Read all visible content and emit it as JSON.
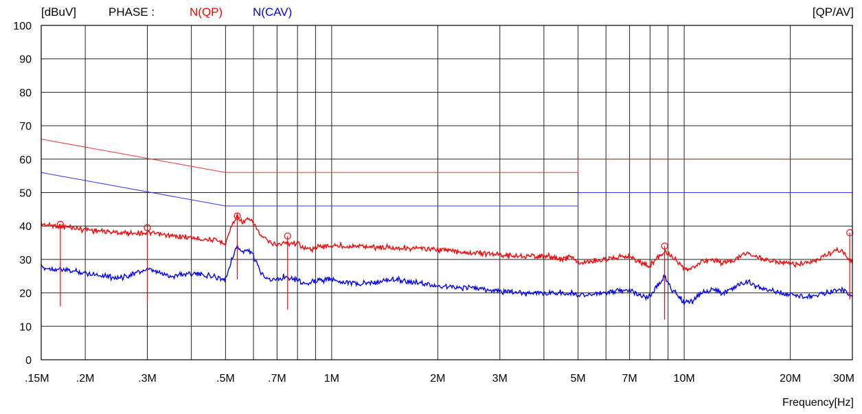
{
  "header": {
    "unit": "[dBuV]",
    "phase_label": "PHASE :",
    "mode": "[QP/AV]"
  },
  "colors": {
    "qp": "#ff0000",
    "cav": "#0000ff",
    "limit_qp": "#ee3333",
    "limit_av": "#3333ee",
    "grid": "#222222"
  },
  "chart_data": {
    "type": "line",
    "title": "",
    "xscale": "log",
    "xlim": [
      0.15,
      30
    ],
    "ylim": [
      0,
      100
    ],
    "xlabel": "Frequency[Hz]",
    "ylabel": "[dBuV]",
    "grid": true,
    "yticks": [
      0,
      10,
      20,
      30,
      40,
      50,
      60,
      70,
      80,
      90,
      100
    ],
    "xticks": [
      {
        "v": 0.15,
        "label": ".15M"
      },
      {
        "v": 0.2,
        "label": ".2M"
      },
      {
        "v": 0.3,
        "label": ".3M"
      },
      {
        "v": 0.5,
        "label": ".5M"
      },
      {
        "v": 0.7,
        "label": ".7M"
      },
      {
        "v": 1,
        "label": "1M"
      },
      {
        "v": 2,
        "label": "2M"
      },
      {
        "v": 3,
        "label": "3M"
      },
      {
        "v": 5,
        "label": "5M"
      },
      {
        "v": 7,
        "label": "7M"
      },
      {
        "v": 10,
        "label": "10M"
      },
      {
        "v": 20,
        "label": "20M"
      },
      {
        "v": 30,
        "label": "30M"
      }
    ],
    "minor_gridlines": [
      0.4,
      0.6,
      0.8,
      0.9,
      4,
      6,
      8,
      9
    ],
    "legend": [
      {
        "name": "N(QP)",
        "color": "#ff0000"
      },
      {
        "name": "N(CAV)",
        "color": "#0000ff"
      }
    ],
    "limit_lines": [
      {
        "color": "#ee3333",
        "points": [
          [
            0.15,
            66
          ],
          [
            0.5,
            56
          ],
          [
            5,
            56
          ],
          [
            5,
            60
          ],
          [
            30,
            60
          ]
        ]
      },
      {
        "color": "#3333ee",
        "points": [
          [
            0.15,
            56
          ],
          [
            0.5,
            46
          ],
          [
            5,
            46
          ],
          [
            5,
            50
          ],
          [
            30,
            50
          ]
        ]
      }
    ],
    "series": [
      {
        "name": "N(QP)",
        "color": "#ff0000",
        "values": [
          [
            0.15,
            40.5
          ],
          [
            0.17,
            40
          ],
          [
            0.2,
            39
          ],
          [
            0.25,
            38
          ],
          [
            0.3,
            38
          ],
          [
            0.35,
            37
          ],
          [
            0.4,
            36.5
          ],
          [
            0.45,
            36
          ],
          [
            0.5,
            35
          ],
          [
            0.52,
            40
          ],
          [
            0.54,
            43
          ],
          [
            0.56,
            41
          ],
          [
            0.58,
            42
          ],
          [
            0.6,
            41
          ],
          [
            0.63,
            37
          ],
          [
            0.67,
            35
          ],
          [
            0.7,
            34.5
          ],
          [
            0.75,
            35
          ],
          [
            0.8,
            35
          ],
          [
            0.85,
            33
          ],
          [
            0.9,
            33.5
          ],
          [
            0.95,
            34
          ],
          [
            1,
            34
          ],
          [
            1.2,
            34
          ],
          [
            1.5,
            33.5
          ],
          [
            2,
            33
          ],
          [
            2.5,
            32
          ],
          [
            3,
            31.5
          ],
          [
            3.5,
            31
          ],
          [
            4,
            31
          ],
          [
            4.5,
            30
          ],
          [
            4.8,
            31
          ],
          [
            5,
            29
          ],
          [
            5.5,
            29.5
          ],
          [
            6,
            30
          ],
          [
            6.5,
            31
          ],
          [
            7,
            31
          ],
          [
            7.5,
            29
          ],
          [
            8,
            28
          ],
          [
            8.5,
            31
          ],
          [
            8.8,
            32.5
          ],
          [
            9.2,
            31
          ],
          [
            9.6,
            29
          ],
          [
            10,
            27
          ],
          [
            10.5,
            27
          ],
          [
            11,
            29
          ],
          [
            12,
            30
          ],
          [
            13,
            29
          ],
          [
            14,
            30
          ],
          [
            15,
            32
          ],
          [
            16,
            31
          ],
          [
            17,
            30
          ],
          [
            19,
            29
          ],
          [
            21,
            28.5
          ],
          [
            23,
            29
          ],
          [
            25,
            31
          ],
          [
            27,
            33
          ],
          [
            28.5,
            32
          ],
          [
            30,
            29
          ]
        ]
      },
      {
        "name": "N(CAV)",
        "color": "#0000ff",
        "values": [
          [
            0.15,
            27.5
          ],
          [
            0.17,
            27
          ],
          [
            0.2,
            26
          ],
          [
            0.25,
            24.5
          ],
          [
            0.3,
            27
          ],
          [
            0.35,
            25
          ],
          [
            0.4,
            26
          ],
          [
            0.45,
            25
          ],
          [
            0.5,
            24
          ],
          [
            0.52,
            30
          ],
          [
            0.54,
            34
          ],
          [
            0.56,
            32
          ],
          [
            0.58,
            33
          ],
          [
            0.6,
            31
          ],
          [
            0.63,
            26
          ],
          [
            0.67,
            24
          ],
          [
            0.7,
            24
          ],
          [
            0.75,
            25
          ],
          [
            0.8,
            24
          ],
          [
            0.85,
            22.5
          ],
          [
            0.9,
            23.5
          ],
          [
            0.95,
            24
          ],
          [
            1,
            24
          ],
          [
            1.2,
            22.5
          ],
          [
            1.5,
            24
          ],
          [
            2,
            22
          ],
          [
            2.5,
            21.5
          ],
          [
            3,
            20.5
          ],
          [
            3.5,
            20
          ],
          [
            4,
            20
          ],
          [
            4.5,
            20
          ],
          [
            5,
            19.5
          ],
          [
            5.5,
            19.5
          ],
          [
            6,
            20
          ],
          [
            6.5,
            20.5
          ],
          [
            7,
            21
          ],
          [
            7.5,
            19
          ],
          [
            8,
            19
          ],
          [
            8.5,
            23
          ],
          [
            8.8,
            25
          ],
          [
            9.2,
            21
          ],
          [
            9.6,
            19
          ],
          [
            10,
            17
          ],
          [
            10.5,
            17.5
          ],
          [
            11,
            19.5
          ],
          [
            12,
            21
          ],
          [
            13,
            20
          ],
          [
            14,
            22
          ],
          [
            15,
            23.5
          ],
          [
            16,
            22
          ],
          [
            17,
            21
          ],
          [
            19,
            20
          ],
          [
            21,
            19
          ],
          [
            23,
            19
          ],
          [
            25,
            20
          ],
          [
            27,
            21
          ],
          [
            28.5,
            20.5
          ],
          [
            30,
            19
          ]
        ]
      }
    ],
    "markers": [
      {
        "x": 0.17,
        "qp": 40.5,
        "av": 16
      },
      {
        "x": 0.3,
        "qp": 39.5,
        "av": 17
      },
      {
        "x": 0.54,
        "qp": 43,
        "av": 24
      },
      {
        "x": 0.75,
        "qp": 37,
        "av": 15
      },
      {
        "x": 8.8,
        "qp": 34,
        "av": 12
      },
      {
        "x": 29.5,
        "qp": 38,
        "av": 18
      }
    ]
  }
}
